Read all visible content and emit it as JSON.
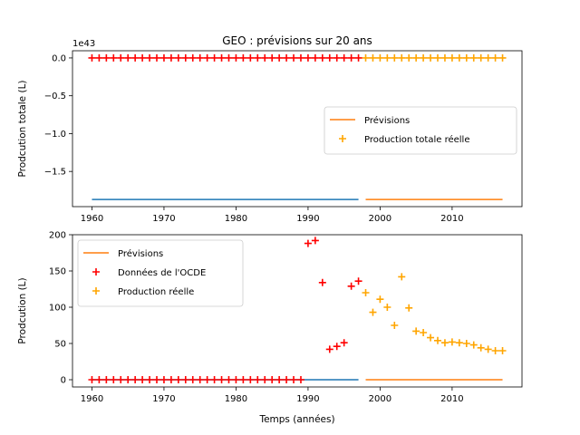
{
  "figure_title": "GEO : prévisions sur 20 ans",
  "colors": {
    "ocde": "#ff0000",
    "real": "#ffa500",
    "forecast": "#ff7f0e",
    "baseline": "#1f77b4"
  },
  "chart_data": [
    {
      "type": "line",
      "title": "GEO : prévisions sur 20 ans",
      "xlabel": "",
      "ylabel": "Prodcution totale (L)",
      "offset_text": "1e43",
      "xlim": [
        1957.3,
        2019.7
      ],
      "ylim": [
        -1.965,
        0.095
      ],
      "xticks": [
        1960,
        1970,
        1980,
        1990,
        2000,
        2010
      ],
      "yticks": [
        0.0,
        -0.5,
        -1.0,
        -1.5
      ],
      "ytick_labels": [
        "0.0",
        "−0.5",
        "−1.0",
        "−1.5"
      ],
      "legend": {
        "placement": "center-right",
        "entries": [
          {
            "label": "Prévisions",
            "kind": "line",
            "color": "#ff7f0e"
          },
          {
            "label": "Production totale réelle",
            "kind": "marker",
            "color": "#ffa500"
          }
        ]
      },
      "lines": [
        {
          "color": "#1f77b4",
          "x": [
            1960,
            1997
          ],
          "y": [
            -1.87,
            -1.87
          ]
        },
        {
          "color": "#ff7f0e",
          "x": [
            1998,
            2017
          ],
          "y": [
            -1.87,
            -1.87
          ]
        }
      ],
      "markers": [
        {
          "color": "#ff0000",
          "x_from": 1960,
          "x_to": 1997,
          "y": 0.0
        },
        {
          "color": "#ffa500",
          "x_from": 1998,
          "x_to": 2017,
          "y": 0.0
        }
      ]
    },
    {
      "type": "scatter",
      "title": "",
      "xlabel": "Temps (années)",
      "ylabel": "Prodcution (L)",
      "xlim": [
        1957.3,
        2019.7
      ],
      "ylim": [
        -10,
        200
      ],
      "xticks": [
        1960,
        1970,
        1980,
        1990,
        2000,
        2010
      ],
      "yticks": [
        0,
        50,
        100,
        150,
        200
      ],
      "ytick_labels": [
        "0",
        "50",
        "100",
        "150",
        "200"
      ],
      "legend": {
        "placement": "upper-left",
        "entries": [
          {
            "label": "Prévisions",
            "kind": "line",
            "color": "#ff7f0e"
          },
          {
            "label": "Données de l'OCDE",
            "kind": "marker",
            "color": "#ff0000"
          },
          {
            "label": "Production réelle",
            "kind": "marker",
            "color": "#ffa500"
          }
        ]
      },
      "lines": [
        {
          "color": "#1f77b4",
          "x": [
            1960,
            1997
          ],
          "y": [
            0,
            0
          ]
        },
        {
          "color": "#ff7f0e",
          "x": [
            1998,
            2017
          ],
          "y": [
            0,
            0
          ]
        }
      ],
      "markers": [
        {
          "color": "#ff0000",
          "x_from": 1960,
          "x_to": 1989,
          "y": 0
        },
        {
          "color": "#ff0000",
          "points": [
            [
              1990,
              188
            ],
            [
              1991,
              192
            ],
            [
              1992,
              134
            ],
            [
              1993,
              42
            ],
            [
              1994,
              46
            ],
            [
              1995,
              51
            ],
            [
              1996,
              129
            ],
            [
              1997,
              136
            ]
          ]
        },
        {
          "color": "#ffa500",
          "points": [
            [
              1998,
              120
            ],
            [
              1999,
              93
            ],
            [
              2000,
              111
            ],
            [
              2001,
              100
            ],
            [
              2002,
              75
            ],
            [
              2003,
              142
            ],
            [
              2004,
              99
            ],
            [
              2005,
              67
            ],
            [
              2006,
              65
            ],
            [
              2007,
              58
            ],
            [
              2008,
              54
            ],
            [
              2009,
              51
            ],
            [
              2010,
              52
            ],
            [
              2011,
              51
            ],
            [
              2012,
              50
            ],
            [
              2013,
              48
            ],
            [
              2014,
              44
            ],
            [
              2015,
              42
            ],
            [
              2016,
              40
            ],
            [
              2017,
              40
            ]
          ]
        }
      ]
    }
  ]
}
